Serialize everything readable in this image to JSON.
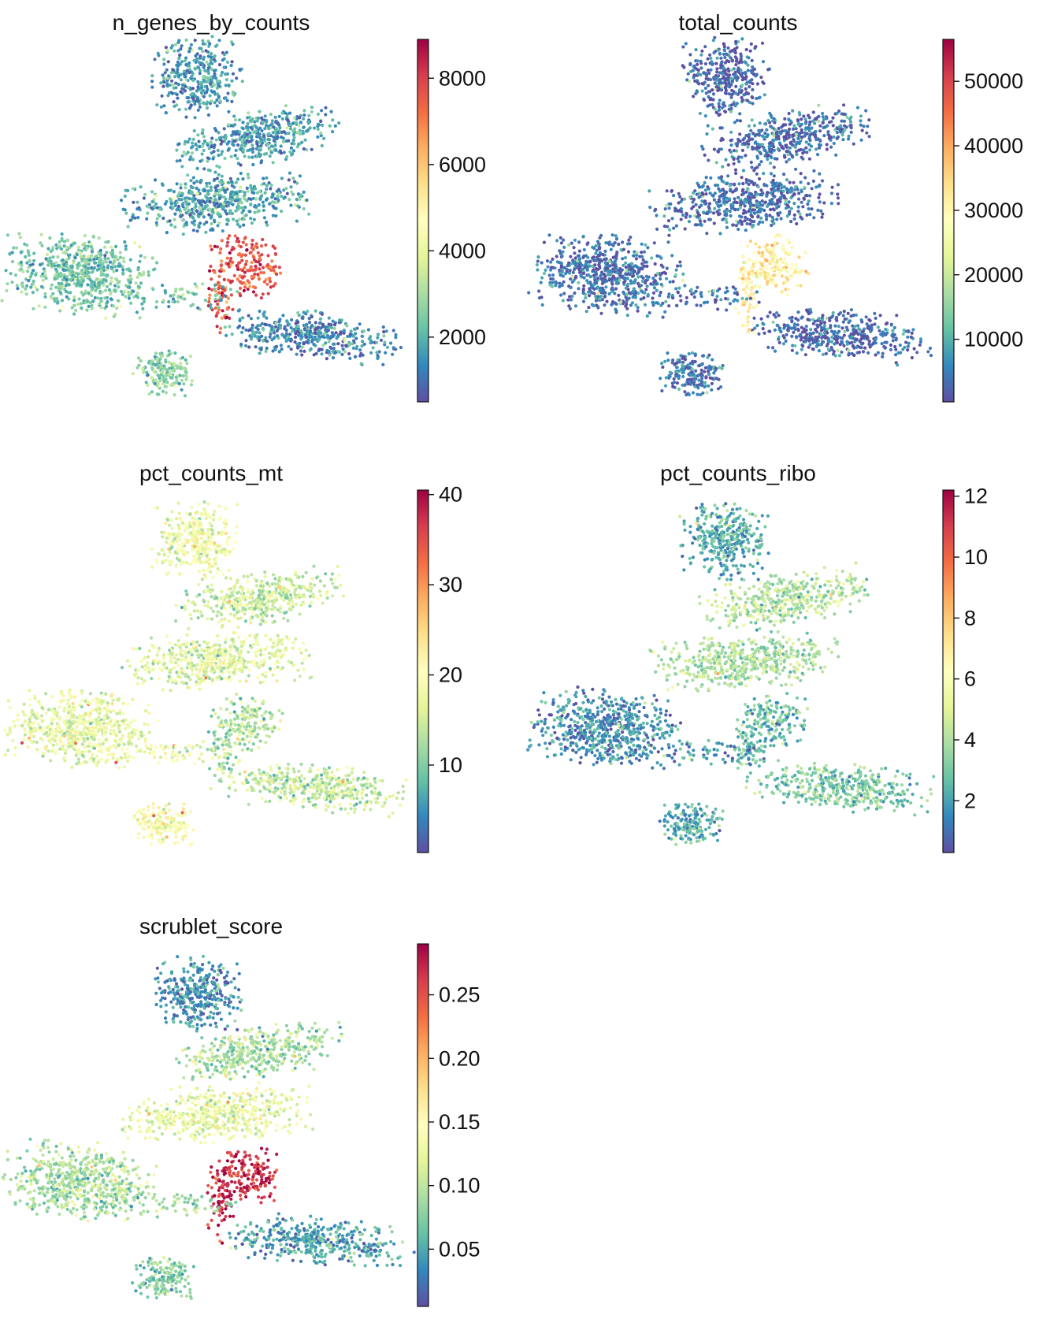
{
  "figure": {
    "background": "#ffffff"
  },
  "colormap": {
    "name": "Spectral_r",
    "stops": [
      "#5e4fa2",
      "#3288bd",
      "#66c2a5",
      "#abdda4",
      "#e6f598",
      "#ffffbf",
      "#fee08b",
      "#fdae61",
      "#f46d43",
      "#d53e4f",
      "#9e0142"
    ]
  },
  "chart_data": [
    {
      "type": "scatter",
      "embedding": "umap",
      "title": "n_genes_by_counts",
      "colorbar": {
        "range": [
          500,
          8900
        ],
        "ticks": [
          2000,
          4000,
          6000,
          8000
        ],
        "tick_labels": [
          "2000",
          "4000",
          "6000",
          "8000"
        ]
      },
      "clusters": [
        {
          "name": "top-left lobe",
          "level": 0.12
        },
        {
          "name": "top-right band",
          "level": 0.14
        },
        {
          "name": "middle band",
          "level": 0.15
        },
        {
          "name": "left lobe",
          "level": 0.22
        },
        {
          "name": "bottom-left blob",
          "level": 0.26
        },
        {
          "name": "bottom-right band",
          "level": 0.1
        },
        {
          "name": "center hotspot",
          "level": 0.85
        }
      ]
    },
    {
      "type": "scatter",
      "embedding": "umap",
      "title": "total_counts",
      "colorbar": {
        "range": [
          300,
          56500
        ],
        "ticks": [
          10000,
          20000,
          30000,
          40000,
          50000
        ],
        "tick_labels": [
          "10000",
          "20000",
          "30000",
          "40000",
          "50000"
        ]
      },
      "clusters": [
        {
          "name": "top-left lobe",
          "level": 0.04
        },
        {
          "name": "top-right band",
          "level": 0.05
        },
        {
          "name": "middle band",
          "level": 0.05
        },
        {
          "name": "left lobe",
          "level": 0.06
        },
        {
          "name": "bottom-left blob",
          "level": 0.07
        },
        {
          "name": "bottom-right band",
          "level": 0.04
        },
        {
          "name": "center hotspot",
          "level": 0.55
        }
      ]
    },
    {
      "type": "scatter",
      "embedding": "umap",
      "title": "pct_counts_mt",
      "colorbar": {
        "range": [
          0.3,
          40.5
        ],
        "ticks": [
          10,
          20,
          30,
          40
        ],
        "tick_labels": [
          "10",
          "20",
          "30",
          "40"
        ]
      },
      "clusters": [
        {
          "name": "top-left lobe",
          "level": 0.44
        },
        {
          "name": "top-right band",
          "level": 0.36
        },
        {
          "name": "middle band",
          "level": 0.4
        },
        {
          "name": "left lobe",
          "level": 0.42
        },
        {
          "name": "bottom-left blob",
          "level": 0.47
        },
        {
          "name": "bottom-right band",
          "level": 0.35
        },
        {
          "name": "center hotspot",
          "level": 0.3
        }
      ]
    },
    {
      "type": "scatter",
      "embedding": "umap",
      "title": "pct_counts_ribo",
      "colorbar": {
        "range": [
          0.3,
          12.2
        ],
        "ticks": [
          2,
          4,
          6,
          8,
          10,
          12
        ],
        "tick_labels": [
          "2",
          "4",
          "6",
          "8",
          "10",
          "12"
        ]
      },
      "clusters": [
        {
          "name": "top-left lobe",
          "level": 0.17
        },
        {
          "name": "top-right band",
          "level": 0.32
        },
        {
          "name": "middle band",
          "level": 0.3
        },
        {
          "name": "left lobe",
          "level": 0.12
        },
        {
          "name": "bottom-left blob",
          "level": 0.16
        },
        {
          "name": "bottom-right band",
          "level": 0.24
        },
        {
          "name": "center hotspot",
          "level": 0.2
        }
      ]
    },
    {
      "type": "scatter",
      "embedding": "umap",
      "title": "scrublet_score",
      "colorbar": {
        "range": [
          0.005,
          0.29
        ],
        "ticks": [
          0.05,
          0.1,
          0.15,
          0.2,
          0.25
        ],
        "tick_labels": [
          "0.05",
          "0.10",
          "0.15",
          "0.20",
          "0.25"
        ]
      },
      "clusters": [
        {
          "name": "top-left lobe",
          "level": 0.12
        },
        {
          "name": "top-right band",
          "level": 0.3
        },
        {
          "name": "middle band",
          "level": 0.42
        },
        {
          "name": "left lobe",
          "level": 0.3
        },
        {
          "name": "bottom-left blob",
          "level": 0.25
        },
        {
          "name": "bottom-right band",
          "level": 0.15
        },
        {
          "name": "center hotspot",
          "level": 0.92
        }
      ]
    }
  ]
}
